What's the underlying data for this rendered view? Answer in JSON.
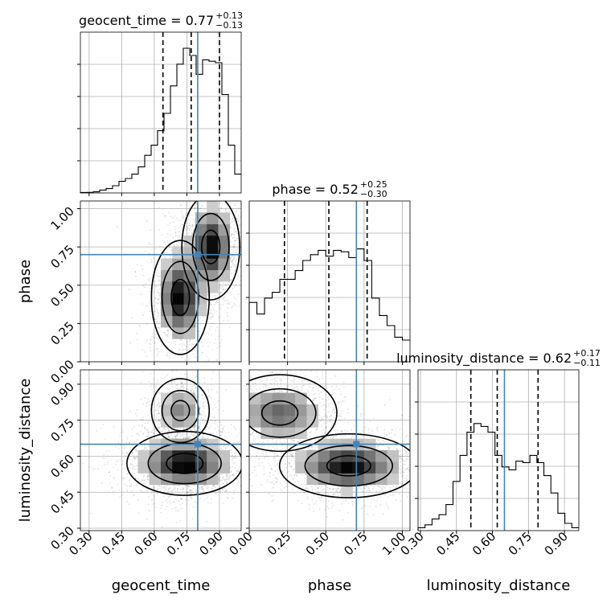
{
  "chart_data": {
    "type": "corner",
    "parameters": [
      "geocent_time",
      "phase",
      "luminosity_distance"
    ],
    "ticks": {
      "geocent_time": [
        "0.30",
        "0.45",
        "0.60",
        "0.75",
        "0.90"
      ],
      "phase": [
        "0.00",
        "0.25",
        "0.50",
        "0.75",
        "1.00"
      ],
      "luminosity_distance": [
        "0.30",
        "0.45",
        "0.60",
        "0.75",
        "0.90"
      ]
    },
    "ranges": {
      "geocent_time": [
        0.26,
        1.0
      ],
      "phase": [
        0.0,
        1.05
      ],
      "luminosity_distance": [
        0.29,
        0.96
      ]
    },
    "truths": {
      "geocent_time": 0.8,
      "phase": 0.7,
      "luminosity_distance": 0.65
    },
    "truth_color": "#4682b4",
    "grid": true,
    "titles": [
      {
        "param": "geocent_time",
        "label": "geocent_time",
        "median": "0.77",
        "plus": "+0.13",
        "minus": "−0.13"
      },
      {
        "param": "phase",
        "label": "phase",
        "median": "0.52",
        "plus": "+0.25",
        "minus": "−0.30"
      },
      {
        "param": "luminosity_distance",
        "label": "luminosity_distance",
        "median": "0.62",
        "plus": "+0.17",
        "minus": "−0.11"
      }
    ],
    "histograms": [
      {
        "param": "geocent_time",
        "quantiles": [
          0.64,
          0.77,
          0.9
        ],
        "bins": [
          [
            0.26,
            0.003
          ],
          [
            0.3,
            0.004
          ],
          [
            0.33,
            0.008
          ],
          [
            0.36,
            0.02
          ],
          [
            0.39,
            0.03
          ],
          [
            0.41,
            0.05
          ],
          [
            0.44,
            0.08
          ],
          [
            0.47,
            0.1
          ],
          [
            0.5,
            0.13
          ],
          [
            0.53,
            0.18
          ],
          [
            0.56,
            0.26
          ],
          [
            0.59,
            0.33
          ],
          [
            0.61,
            0.43
          ],
          [
            0.64,
            0.55
          ],
          [
            0.67,
            0.74
          ],
          [
            0.7,
            0.89
          ],
          [
            0.73,
            1.0
          ],
          [
            0.76,
            0.95
          ],
          [
            0.79,
            0.82
          ],
          [
            0.82,
            0.92
          ],
          [
            0.84,
            0.91
          ],
          [
            0.87,
            0.9
          ],
          [
            0.9,
            0.68
          ],
          [
            0.93,
            0.33
          ],
          [
            0.96,
            0.13
          ]
        ]
      },
      {
        "param": "phase",
        "quantiles": [
          0.23,
          0.52,
          0.77
        ],
        "bins": [
          [
            0.0,
            0.41
          ],
          [
            0.05,
            0.33
          ],
          [
            0.1,
            0.44
          ],
          [
            0.15,
            0.48
          ],
          [
            0.2,
            0.57
          ],
          [
            0.25,
            0.57
          ],
          [
            0.3,
            0.63
          ],
          [
            0.35,
            0.7
          ],
          [
            0.4,
            0.74
          ],
          [
            0.45,
            0.77
          ],
          [
            0.5,
            0.73
          ],
          [
            0.55,
            0.77
          ],
          [
            0.6,
            0.76
          ],
          [
            0.65,
            0.72
          ],
          [
            0.7,
            0.78
          ],
          [
            0.75,
            0.7
          ],
          [
            0.8,
            0.44
          ],
          [
            0.85,
            0.32
          ],
          [
            0.9,
            0.25
          ],
          [
            0.95,
            0.17
          ],
          [
            1.0,
            0.15
          ]
        ]
      },
      {
        "param": "luminosity_distance",
        "quantiles": [
          0.51,
          0.62,
          0.79
        ],
        "bins": [
          [
            0.29,
            0.02
          ],
          [
            0.32,
            0.04
          ],
          [
            0.35,
            0.08
          ],
          [
            0.38,
            0.11
          ],
          [
            0.41,
            0.18
          ],
          [
            0.44,
            0.34
          ],
          [
            0.47,
            0.52
          ],
          [
            0.5,
            0.68
          ],
          [
            0.53,
            0.74
          ],
          [
            0.56,
            0.72
          ],
          [
            0.59,
            0.68
          ],
          [
            0.62,
            0.52
          ],
          [
            0.65,
            0.44
          ],
          [
            0.68,
            0.42
          ],
          [
            0.71,
            0.48
          ],
          [
            0.74,
            0.47
          ],
          [
            0.77,
            0.52
          ],
          [
            0.8,
            0.47
          ],
          [
            0.83,
            0.38
          ],
          [
            0.86,
            0.26
          ],
          [
            0.89,
            0.12
          ],
          [
            0.92,
            0.05
          ],
          [
            0.95,
            0.02
          ]
        ]
      }
    ],
    "joint_2d": [
      {
        "x": "geocent_time",
        "y": "phase",
        "modes": [
          {
            "x": 0.72,
            "y": 0.42,
            "sx": 0.05,
            "sy": 0.14,
            "w": 1
          },
          {
            "x": 0.86,
            "y": 0.75,
            "sx": 0.05,
            "sy": 0.13,
            "w": 1
          }
        ]
      },
      {
        "x": "geocent_time",
        "y": "luminosity_distance",
        "modes": [
          {
            "x": 0.74,
            "y": 0.57,
            "sx": 0.1,
            "sy": 0.05,
            "w": 1.2
          },
          {
            "x": 0.72,
            "y": 0.79,
            "sx": 0.05,
            "sy": 0.05,
            "w": 0.5
          }
        ]
      },
      {
        "x": "phase",
        "y": "luminosity_distance",
        "modes": [
          {
            "x": 0.65,
            "y": 0.56,
            "sx": 0.17,
            "sy": 0.05,
            "w": 1.2
          },
          {
            "x": 0.2,
            "y": 0.78,
            "sx": 0.14,
            "sy": 0.06,
            "w": 0.7
          }
        ]
      }
    ]
  }
}
